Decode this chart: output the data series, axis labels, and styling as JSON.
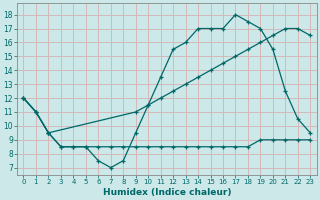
{
  "xlabel": "Humidex (Indice chaleur)",
  "bg_color": "#cce8e8",
  "grid_color": "#d4b8b8",
  "line_color": "#006868",
  "spine_color": "#888888",
  "xlim": [
    -0.5,
    23.5
  ],
  "ylim": [
    6.5,
    18.8
  ],
  "yticks": [
    7,
    8,
    9,
    10,
    11,
    12,
    13,
    14,
    15,
    16,
    17,
    18
  ],
  "xticks": [
    0,
    1,
    2,
    3,
    4,
    5,
    6,
    7,
    8,
    9,
    10,
    11,
    12,
    13,
    14,
    15,
    16,
    17,
    18,
    19,
    20,
    21,
    22,
    23
  ],
  "line1_x": [
    0,
    1,
    2,
    3,
    4,
    5,
    6,
    7,
    8,
    9,
    10,
    11,
    12,
    13,
    14,
    15,
    16,
    17,
    18,
    19,
    20,
    21,
    22,
    23
  ],
  "line1_y": [
    12,
    11,
    9.5,
    8.5,
    8.5,
    8.5,
    7.5,
    7.0,
    7.5,
    9.5,
    11.5,
    13.5,
    15.5,
    16.0,
    17.0,
    17.0,
    17.0,
    18.0,
    17.5,
    17.0,
    15.5,
    12.5,
    10.5,
    9.5
  ],
  "line2_x": [
    0,
    1,
    2,
    9,
    10,
    11,
    12,
    13,
    14,
    15,
    16,
    17,
    18,
    19,
    20,
    21,
    22,
    23
  ],
  "line2_y": [
    12,
    11,
    9.5,
    11.0,
    11.5,
    12.0,
    12.5,
    13.0,
    13.5,
    14.0,
    14.5,
    15.0,
    15.5,
    16.0,
    16.5,
    17.0,
    17.0,
    16.5
  ],
  "line3_x": [
    0,
    1,
    2,
    3,
    4,
    5,
    6,
    7,
    8,
    9,
    10,
    11,
    12,
    13,
    14,
    15,
    16,
    17,
    18,
    19,
    20,
    21,
    22,
    23
  ],
  "line3_y": [
    12,
    11,
    9.5,
    8.5,
    8.5,
    8.5,
    8.5,
    8.5,
    8.5,
    8.5,
    8.5,
    8.5,
    8.5,
    8.5,
    8.5,
    8.5,
    8.5,
    8.5,
    8.5,
    9.0,
    9.0,
    9.0,
    9.0,
    9.0
  ]
}
